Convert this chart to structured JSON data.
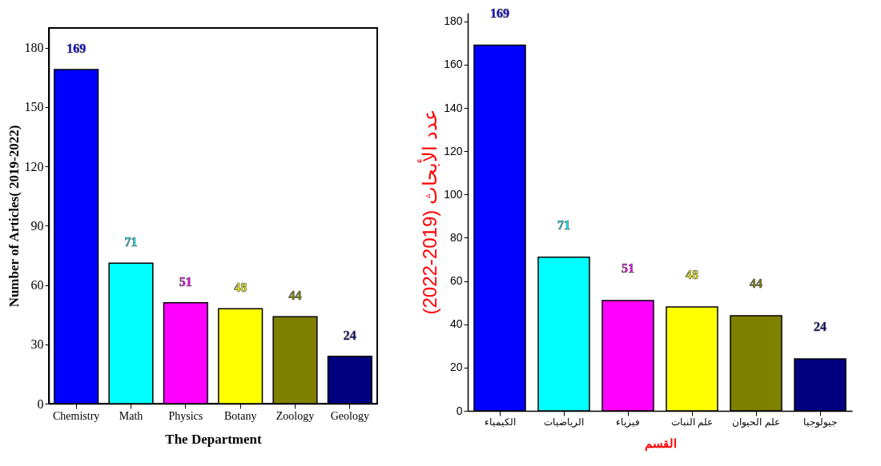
{
  "chart_data": [
    {
      "type": "bar",
      "xlabel": "The Department",
      "ylabel": "Number of Articles( 2019-2022)",
      "categories": [
        "Chemistry",
        "Math",
        "Physics",
        "Botany",
        "Zoology",
        "Geology"
      ],
      "values": [
        169,
        71,
        51,
        48,
        44,
        24
      ],
      "colors": [
        "#0000ff",
        "#00ffff",
        "#ff00ff",
        "#ffff00",
        "#808000",
        "#000080"
      ],
      "ylim": [
        0,
        190
      ],
      "yticks": [
        0,
        30,
        60,
        90,
        120,
        150,
        180
      ],
      "data_labels": true
    },
    {
      "type": "bar",
      "xlabel": "القسم",
      "ylabel": "عدد الأبحاث (2019-2022)",
      "categories": [
        "الكيمياء",
        "الرياضيات",
        "فيزياء",
        "علم النبات",
        "علم الحيوان",
        "جيولوجيا"
      ],
      "values": [
        169,
        71,
        51,
        48,
        44,
        24
      ],
      "colors": [
        "#0000ff",
        "#00ffff",
        "#ff00ff",
        "#ffff00",
        "#808000",
        "#000080"
      ],
      "ylim": [
        0,
        184
      ],
      "yticks": [
        0,
        20,
        40,
        60,
        80,
        100,
        120,
        140,
        160,
        180
      ],
      "data_labels": true
    }
  ]
}
